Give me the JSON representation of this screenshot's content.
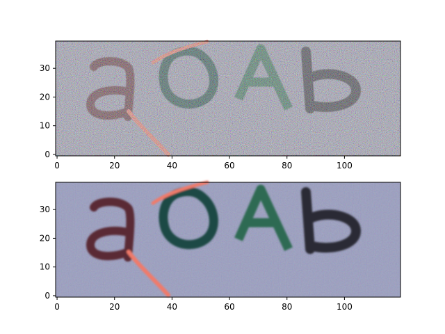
{
  "chart_data": [
    {
      "type": "image",
      "panel": "top",
      "title": "",
      "xlabel": "",
      "ylabel": "",
      "xlim": [
        -0.5,
        119.5
      ],
      "ylim": [
        39.5,
        -0.5
      ],
      "x_ticks": [
        0,
        20,
        40,
        60,
        80,
        100
      ],
      "x_tick_labels": [
        "0",
        "20",
        "40",
        "60",
        "80",
        "100"
      ],
      "y_ticks": [
        0,
        10,
        20,
        30
      ],
      "y_tick_labels": [
        "0",
        "10",
        "20",
        "30"
      ],
      "grid": false,
      "image_text": "aoAb",
      "noise": "heavy",
      "background_color": "#9c9cb4",
      "glyph_colors": [
        "#5a2a34",
        "#1f4a44",
        "#2f6a52",
        "#2a2a34"
      ],
      "stroke_color": "#f07a6a"
    },
    {
      "type": "image",
      "panel": "bottom",
      "title": "",
      "xlabel": "",
      "ylabel": "",
      "xlim": [
        -0.5,
        119.5
      ],
      "ylim": [
        39.5,
        -0.5
      ],
      "x_ticks": [
        0,
        20,
        40,
        60,
        80,
        100
      ],
      "x_tick_labels": [
        "0",
        "20",
        "40",
        "60",
        "80",
        "100"
      ],
      "y_ticks": [
        0,
        10,
        20,
        30
      ],
      "y_tick_labels": [
        "0",
        "10",
        "20",
        "30"
      ],
      "grid": false,
      "image_text": "aoAb",
      "noise": "light",
      "background_color": "#9a9ec0",
      "glyph_colors": [
        "#5a2a34",
        "#1f4a44",
        "#2f6a52",
        "#2a2a34"
      ],
      "stroke_color": "#f07a6a"
    }
  ]
}
